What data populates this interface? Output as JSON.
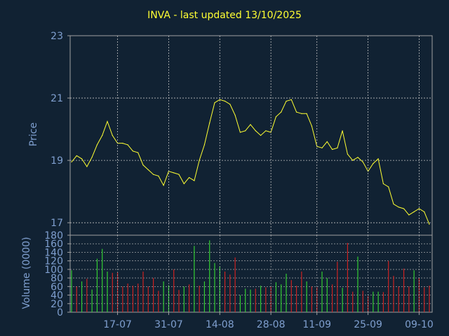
{
  "chart_title": "INVA - last updated 13/10/2025",
  "colors": {
    "background": "#112233",
    "frame": "#a0a0a0",
    "grid": "#c0c0c0",
    "axis_text": "#7f9fcf",
    "price_line": "#ffff33",
    "volume_up": "#33cc33",
    "volume_down": "#cc2222"
  },
  "chart_data": [
    {
      "type": "line",
      "ylabel": "Price",
      "ylim": [
        16.6,
        23
      ],
      "yticks": [
        17,
        19,
        21,
        23
      ],
      "grid": true,
      "xticks": [
        "17-07",
        "31-07",
        "14-08",
        "28-08",
        "11-09",
        "25-09",
        "09-10"
      ],
      "x": [
        "03-07",
        "07-07",
        "08-07",
        "09-07",
        "10-07",
        "11-07",
        "14-07",
        "15-07",
        "16-07",
        "17-07",
        "18-07",
        "21-07",
        "22-07",
        "23-07",
        "24-07",
        "25-07",
        "28-07",
        "29-07",
        "30-07",
        "31-07",
        "01-08",
        "04-08",
        "05-08",
        "06-08",
        "07-08",
        "08-08",
        "11-08",
        "12-08",
        "13-08",
        "14-08",
        "15-08",
        "18-08",
        "19-08",
        "20-08",
        "21-08",
        "22-08",
        "25-08",
        "26-08",
        "27-08",
        "28-08",
        "29-08",
        "02-09",
        "03-09",
        "04-09",
        "05-09",
        "08-09",
        "09-09",
        "10-09",
        "11-09",
        "12-09",
        "15-09",
        "16-09",
        "17-09",
        "18-09",
        "19-09",
        "22-09",
        "23-09",
        "24-09",
        "25-09",
        "26-09",
        "29-09",
        "30-09",
        "01-10",
        "02-10",
        "03-10",
        "06-10",
        "07-10",
        "08-10",
        "09-10",
        "10-10",
        "13-10"
      ],
      "values": [
        18.95,
        19.15,
        19.05,
        18.8,
        19.1,
        19.5,
        19.8,
        20.25,
        19.8,
        19.55,
        19.55,
        19.5,
        19.3,
        19.25,
        18.85,
        18.7,
        18.55,
        18.5,
        18.2,
        18.65,
        18.6,
        18.55,
        18.25,
        18.45,
        18.35,
        19.0,
        19.5,
        20.2,
        20.85,
        20.95,
        20.9,
        20.8,
        20.45,
        19.9,
        19.95,
        20.15,
        19.95,
        19.8,
        19.95,
        19.9,
        20.4,
        20.55,
        20.9,
        20.95,
        20.55,
        20.5,
        20.5,
        20.1,
        19.45,
        19.4,
        19.6,
        19.35,
        19.4,
        19.95,
        19.2,
        19.0,
        19.1,
        18.95,
        18.65,
        18.9,
        19.05,
        18.25,
        18.15,
        17.6,
        17.5,
        17.45,
        17.25,
        17.35,
        17.45,
        17.35,
        16.95
      ]
    },
    {
      "type": "bar",
      "ylabel": "Volume (0000)",
      "ylim": [
        0,
        180
      ],
      "yticks": [
        0,
        20,
        40,
        60,
        80,
        100,
        120,
        140,
        160,
        180
      ],
      "grid": true,
      "values": [
        98,
        60,
        72,
        78,
        53,
        125,
        148,
        95,
        92,
        93,
        60,
        67,
        62,
        67,
        95,
        60,
        80,
        50,
        72,
        63,
        100,
        52,
        60,
        65,
        155,
        62,
        72,
        168,
        115,
        107,
        95,
        88,
        128,
        40,
        55,
        53,
        55,
        62,
        58,
        60,
        70,
        65,
        90,
        75,
        62,
        95,
        72,
        60,
        58,
        95,
        80,
        65,
        118,
        57,
        162,
        48,
        130,
        50,
        38,
        48,
        48,
        47,
        120,
        85,
        60,
        102,
        60,
        98,
        80,
        58,
        62
      ],
      "up": [
        true,
        false,
        true,
        false,
        true,
        true,
        true,
        true,
        false,
        false,
        false,
        false,
        false,
        false,
        false,
        false,
        false,
        false,
        true,
        true,
        false,
        false,
        true,
        false,
        true,
        false,
        true,
        true,
        true,
        true,
        false,
        false,
        false,
        true,
        true,
        true,
        false,
        true,
        false,
        false,
        true,
        true,
        true,
        false,
        false,
        false,
        true,
        false,
        false,
        true,
        true,
        false,
        false,
        true,
        false,
        false,
        true,
        false,
        false,
        true,
        true,
        false,
        false,
        false,
        false,
        false,
        false,
        true,
        false,
        false,
        false
      ]
    }
  ]
}
